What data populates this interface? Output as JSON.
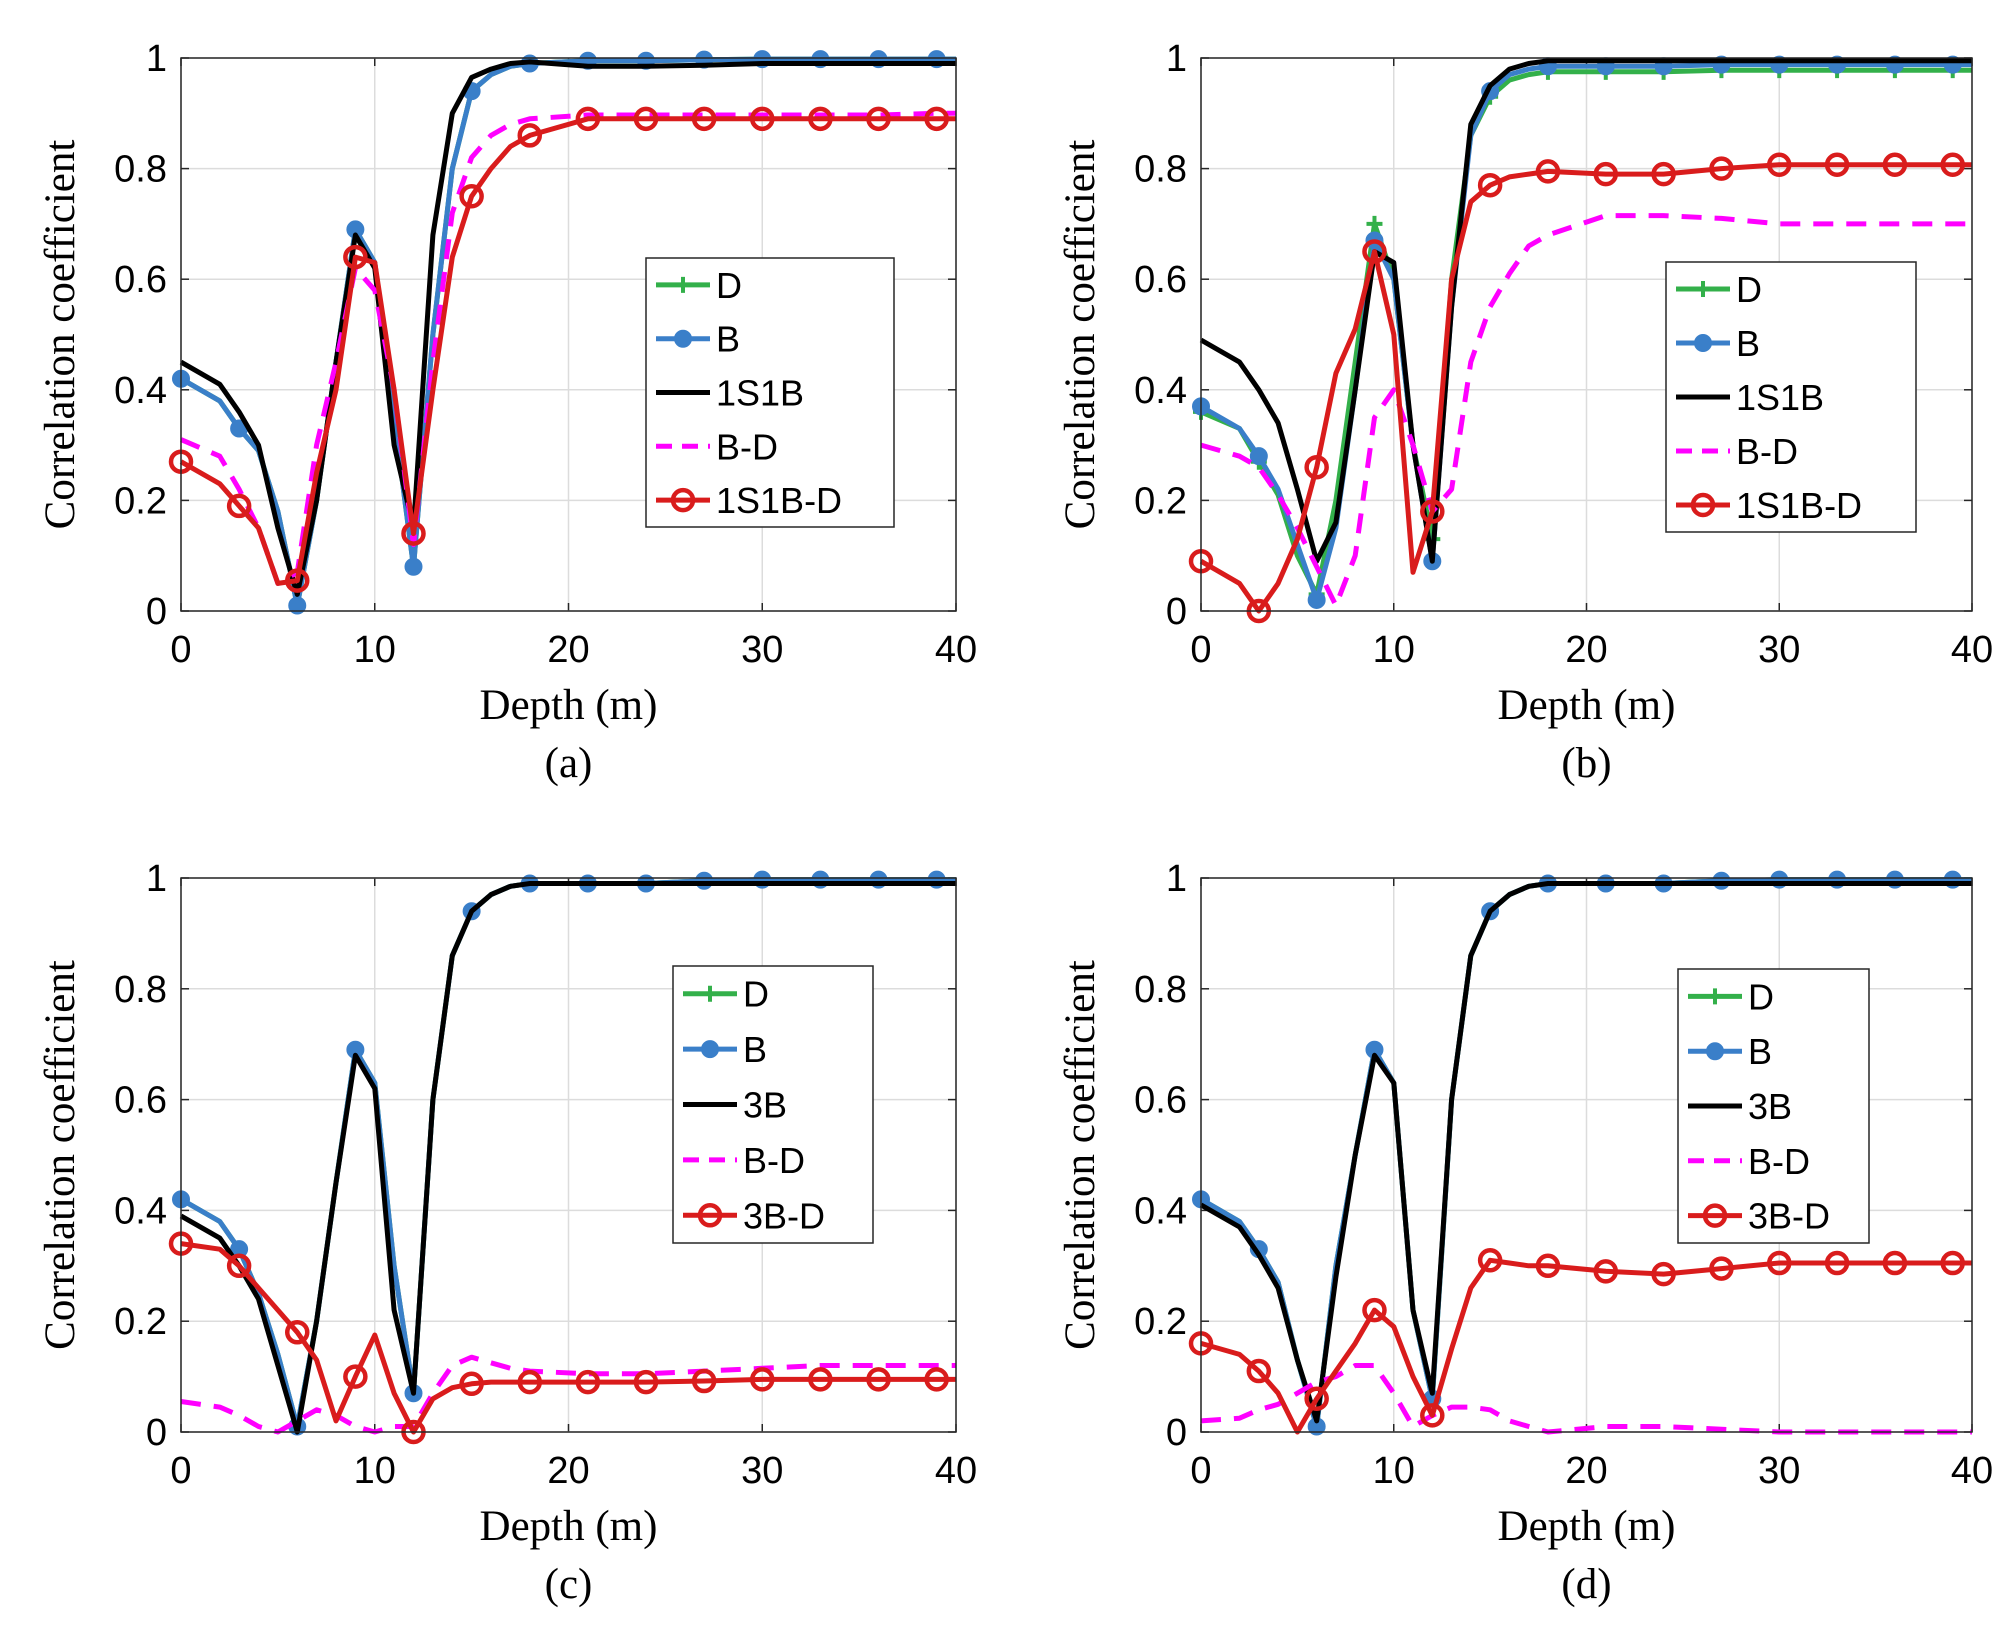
{
  "colors": {
    "D": "#33b04a",
    "B": "#3a7fc9",
    "base": "#000000",
    "BD": "#ff00ff",
    "comb": "#d91c1c",
    "grid": "#dcdcdc"
  },
  "chart_data": [
    {
      "type": "line",
      "panel_label": "(a)",
      "xlabel": "Depth (m)",
      "ylabel": "Correlation coefficient",
      "xlim": [
        0,
        40
      ],
      "ylim": [
        0,
        1
      ],
      "xticks": [
        "0",
        "10",
        "20",
        "30",
        "40"
      ],
      "yticks": [
        "0",
        "0.2",
        "0.4",
        "0.6",
        "0.8",
        "1"
      ],
      "grid": true,
      "legend_placement": "center-right",
      "x": [
        0,
        2,
        3,
        4,
        5,
        6,
        7,
        8,
        9,
        10,
        11,
        12,
        13,
        14,
        15,
        16,
        17,
        18,
        21,
        24,
        27,
        30,
        33,
        36,
        39,
        40
      ],
      "series": [
        {
          "name": "D",
          "key": "D",
          "values": [
            0.42,
            0.38,
            0.33,
            0.29,
            0.18,
            0.01,
            0.2,
            0.45,
            0.69,
            0.63,
            0.35,
            0.08,
            0.5,
            0.8,
            0.94,
            0.97,
            0.985,
            0.99,
            0.995,
            0.995,
            0.997,
            0.998,
            0.998,
            0.998,
            0.998,
            0.998
          ]
        },
        {
          "name": "B",
          "key": "B",
          "values": [
            0.42,
            0.38,
            0.33,
            0.29,
            0.18,
            0.01,
            0.2,
            0.45,
            0.69,
            0.63,
            0.35,
            0.08,
            0.5,
            0.8,
            0.94,
            0.97,
            0.985,
            0.99,
            0.995,
            0.995,
            0.997,
            0.998,
            0.998,
            0.998,
            0.998,
            0.998
          ]
        },
        {
          "name": "1S1B",
          "key": "base",
          "values": [
            0.45,
            0.41,
            0.36,
            0.3,
            0.15,
            0.03,
            0.2,
            0.45,
            0.68,
            0.62,
            0.3,
            0.15,
            0.68,
            0.9,
            0.965,
            0.98,
            0.99,
            0.993,
            0.985,
            0.985,
            0.987,
            0.99,
            0.99,
            0.99,
            0.99,
            0.99
          ]
        },
        {
          "name": "B-D",
          "key": "BD",
          "values": [
            0.31,
            0.28,
            0.22,
            0.15,
            0.05,
            0.07,
            0.3,
            0.45,
            0.62,
            0.58,
            0.4,
            0.12,
            0.45,
            0.72,
            0.82,
            0.86,
            0.88,
            0.89,
            0.897,
            0.897,
            0.897,
            0.897,
            0.897,
            0.897,
            0.9,
            0.9
          ]
        },
        {
          "name": "1S1B-D",
          "key": "comb",
          "values": [
            0.27,
            0.23,
            0.19,
            0.15,
            0.05,
            0.055,
            0.25,
            0.4,
            0.64,
            0.63,
            0.4,
            0.14,
            0.4,
            0.64,
            0.75,
            0.8,
            0.84,
            0.86,
            0.89,
            0.89,
            0.89,
            0.89,
            0.89,
            0.89,
            0.89,
            0.89
          ]
        }
      ]
    },
    {
      "type": "line",
      "panel_label": "(b)",
      "xlabel": "Depth (m)",
      "ylabel": "Correlation coefficient",
      "xlim": [
        0,
        40
      ],
      "ylim": [
        0,
        1
      ],
      "xticks": [
        "0",
        "10",
        "20",
        "30",
        "40"
      ],
      "yticks": [
        "0",
        "0.2",
        "0.4",
        "0.6",
        "0.8",
        "1"
      ],
      "grid": true,
      "legend_placement": "center-right",
      "x": [
        0,
        2,
        3,
        4,
        5,
        6,
        7,
        8,
        9,
        10,
        11,
        12,
        13,
        14,
        15,
        16,
        17,
        18,
        21,
        24,
        27,
        30,
        33,
        36,
        39,
        40
      ],
      "series": [
        {
          "name": "D",
          "key": "D",
          "values": [
            0.36,
            0.33,
            0.27,
            0.21,
            0.1,
            0.03,
            0.2,
            0.45,
            0.7,
            0.6,
            0.3,
            0.13,
            0.6,
            0.86,
            0.93,
            0.96,
            0.97,
            0.975,
            0.975,
            0.975,
            0.978,
            0.978,
            0.978,
            0.978,
            0.978,
            0.978
          ]
        },
        {
          "name": "B",
          "key": "B",
          "values": [
            0.37,
            0.33,
            0.28,
            0.22,
            0.12,
            0.02,
            0.15,
            0.4,
            0.67,
            0.6,
            0.3,
            0.09,
            0.55,
            0.86,
            0.94,
            0.97,
            0.98,
            0.985,
            0.985,
            0.985,
            0.988,
            0.988,
            0.988,
            0.988,
            0.988,
            0.988
          ]
        },
        {
          "name": "1S1B",
          "key": "base",
          "values": [
            0.49,
            0.45,
            0.4,
            0.34,
            0.22,
            0.09,
            0.16,
            0.4,
            0.65,
            0.63,
            0.3,
            0.09,
            0.55,
            0.88,
            0.95,
            0.98,
            0.99,
            0.995,
            0.995,
            0.995,
            0.995,
            0.995,
            0.995,
            0.995,
            0.995,
            0.995
          ]
        },
        {
          "name": "B-D",
          "key": "BD",
          "values": [
            0.3,
            0.28,
            0.26,
            0.21,
            0.15,
            0.08,
            0.01,
            0.1,
            0.35,
            0.4,
            0.3,
            0.18,
            0.22,
            0.45,
            0.55,
            0.61,
            0.66,
            0.68,
            0.715,
            0.715,
            0.71,
            0.7,
            0.7,
            0.7,
            0.7,
            0.7
          ]
        },
        {
          "name": "1S1B-D",
          "key": "comb",
          "values": [
            0.09,
            0.05,
            0.0,
            0.05,
            0.13,
            0.26,
            0.43,
            0.51,
            0.65,
            0.5,
            0.07,
            0.18,
            0.6,
            0.74,
            0.77,
            0.785,
            0.79,
            0.795,
            0.79,
            0.79,
            0.8,
            0.807,
            0.807,
            0.807,
            0.807,
            0.807
          ]
        }
      ]
    },
    {
      "type": "line",
      "panel_label": "(c)",
      "xlabel": "Depth (m)",
      "ylabel": "Correlation coefficient",
      "xlim": [
        0,
        40
      ],
      "ylim": [
        0,
        1
      ],
      "xticks": [
        "0",
        "10",
        "20",
        "30",
        "40"
      ],
      "yticks": [
        "0",
        "0.2",
        "0.4",
        "0.6",
        "0.8",
        "1"
      ],
      "grid": true,
      "legend_placement": "center-right",
      "x": [
        0,
        2,
        3,
        4,
        5,
        6,
        7,
        8,
        9,
        10,
        11,
        12,
        13,
        14,
        15,
        16,
        17,
        18,
        21,
        24,
        27,
        30,
        33,
        36,
        39,
        40
      ],
      "series": [
        {
          "name": "D",
          "key": "D",
          "values": [
            0.42,
            0.38,
            0.33,
            0.25,
            0.14,
            0.01,
            0.2,
            0.45,
            0.69,
            0.63,
            0.3,
            0.07,
            0.6,
            0.86,
            0.94,
            0.97,
            0.985,
            0.99,
            0.99,
            0.99,
            0.995,
            0.997,
            0.997,
            0.997,
            0.997,
            0.997
          ]
        },
        {
          "name": "B",
          "key": "B",
          "values": [
            0.42,
            0.38,
            0.33,
            0.25,
            0.14,
            0.01,
            0.2,
            0.45,
            0.69,
            0.63,
            0.3,
            0.07,
            0.6,
            0.86,
            0.94,
            0.97,
            0.985,
            0.99,
            0.99,
            0.99,
            0.995,
            0.997,
            0.997,
            0.997,
            0.997,
            0.997
          ]
        },
        {
          "name": "3B",
          "key": "base",
          "values": [
            0.39,
            0.35,
            0.3,
            0.24,
            0.12,
            0.0,
            0.2,
            0.45,
            0.68,
            0.62,
            0.22,
            0.07,
            0.6,
            0.86,
            0.94,
            0.97,
            0.985,
            0.99,
            0.99,
            0.99,
            0.99,
            0.99,
            0.99,
            0.99,
            0.99,
            0.99
          ]
        },
        {
          "name": "B-D",
          "key": "BD",
          "values": [
            0.055,
            0.045,
            0.03,
            0.01,
            0.0,
            0.02,
            0.04,
            0.03,
            0.01,
            0.0,
            0.01,
            0.01,
            0.07,
            0.12,
            0.135,
            0.125,
            0.115,
            0.11,
            0.105,
            0.105,
            0.11,
            0.115,
            0.12,
            0.12,
            0.12,
            0.12
          ]
        },
        {
          "name": "3B-D",
          "key": "comb",
          "values": [
            0.34,
            0.33,
            0.3,
            0.26,
            0.22,
            0.18,
            0.13,
            0.02,
            0.1,
            0.175,
            0.07,
            0.0,
            0.06,
            0.08,
            0.087,
            0.09,
            0.09,
            0.09,
            0.09,
            0.09,
            0.092,
            0.095,
            0.095,
            0.095,
            0.095,
            0.095
          ]
        }
      ]
    },
    {
      "type": "line",
      "panel_label": "(d)",
      "xlabel": "Depth (m)",
      "ylabel": "Correlation coefficient",
      "xlim": [
        0,
        40
      ],
      "ylim": [
        0,
        1
      ],
      "xticks": [
        "0",
        "10",
        "20",
        "30",
        "40"
      ],
      "yticks": [
        "0",
        "0.2",
        "0.4",
        "0.6",
        "0.8",
        "1"
      ],
      "grid": true,
      "legend_placement": "center-right",
      "x": [
        0,
        2,
        3,
        4,
        5,
        6,
        7,
        8,
        9,
        10,
        11,
        12,
        13,
        14,
        15,
        16,
        17,
        18,
        21,
        24,
        27,
        30,
        33,
        36,
        39,
        40
      ],
      "series": [
        {
          "name": "D",
          "key": "D",
          "values": [
            0.42,
            0.38,
            0.33,
            0.27,
            0.13,
            0.01,
            0.3,
            0.5,
            0.69,
            0.63,
            0.22,
            0.06,
            0.6,
            0.86,
            0.94,
            0.97,
            0.985,
            0.99,
            0.99,
            0.99,
            0.995,
            0.997,
            0.997,
            0.997,
            0.997,
            0.997
          ]
        },
        {
          "name": "B",
          "key": "B",
          "values": [
            0.42,
            0.38,
            0.33,
            0.27,
            0.13,
            0.01,
            0.3,
            0.5,
            0.69,
            0.63,
            0.22,
            0.06,
            0.6,
            0.86,
            0.94,
            0.97,
            0.985,
            0.99,
            0.99,
            0.99,
            0.995,
            0.997,
            0.997,
            0.997,
            0.997,
            0.997
          ]
        },
        {
          "name": "3B",
          "key": "base",
          "values": [
            0.41,
            0.37,
            0.32,
            0.26,
            0.13,
            0.02,
            0.28,
            0.5,
            0.68,
            0.63,
            0.22,
            0.07,
            0.6,
            0.86,
            0.94,
            0.97,
            0.985,
            0.99,
            0.99,
            0.99,
            0.99,
            0.99,
            0.99,
            0.99,
            0.99,
            0.99
          ]
        },
        {
          "name": "B-D",
          "key": "BD",
          "values": [
            0.02,
            0.025,
            0.04,
            0.05,
            0.07,
            0.09,
            0.1,
            0.12,
            0.12,
            0.07,
            0.01,
            0.03,
            0.045,
            0.045,
            0.04,
            0.02,
            0.01,
            0.0,
            0.01,
            0.01,
            0.005,
            0.0,
            0.0,
            0.0,
            0.0,
            0.0
          ]
        },
        {
          "name": "3B-D",
          "key": "comb",
          "values": [
            0.16,
            0.14,
            0.11,
            0.07,
            0.0,
            0.06,
            0.11,
            0.16,
            0.22,
            0.19,
            0.1,
            0.03,
            0.15,
            0.26,
            0.31,
            0.305,
            0.3,
            0.3,
            0.29,
            0.285,
            0.295,
            0.305,
            0.305,
            0.305,
            0.305,
            0.305
          ]
        }
      ]
    }
  ]
}
